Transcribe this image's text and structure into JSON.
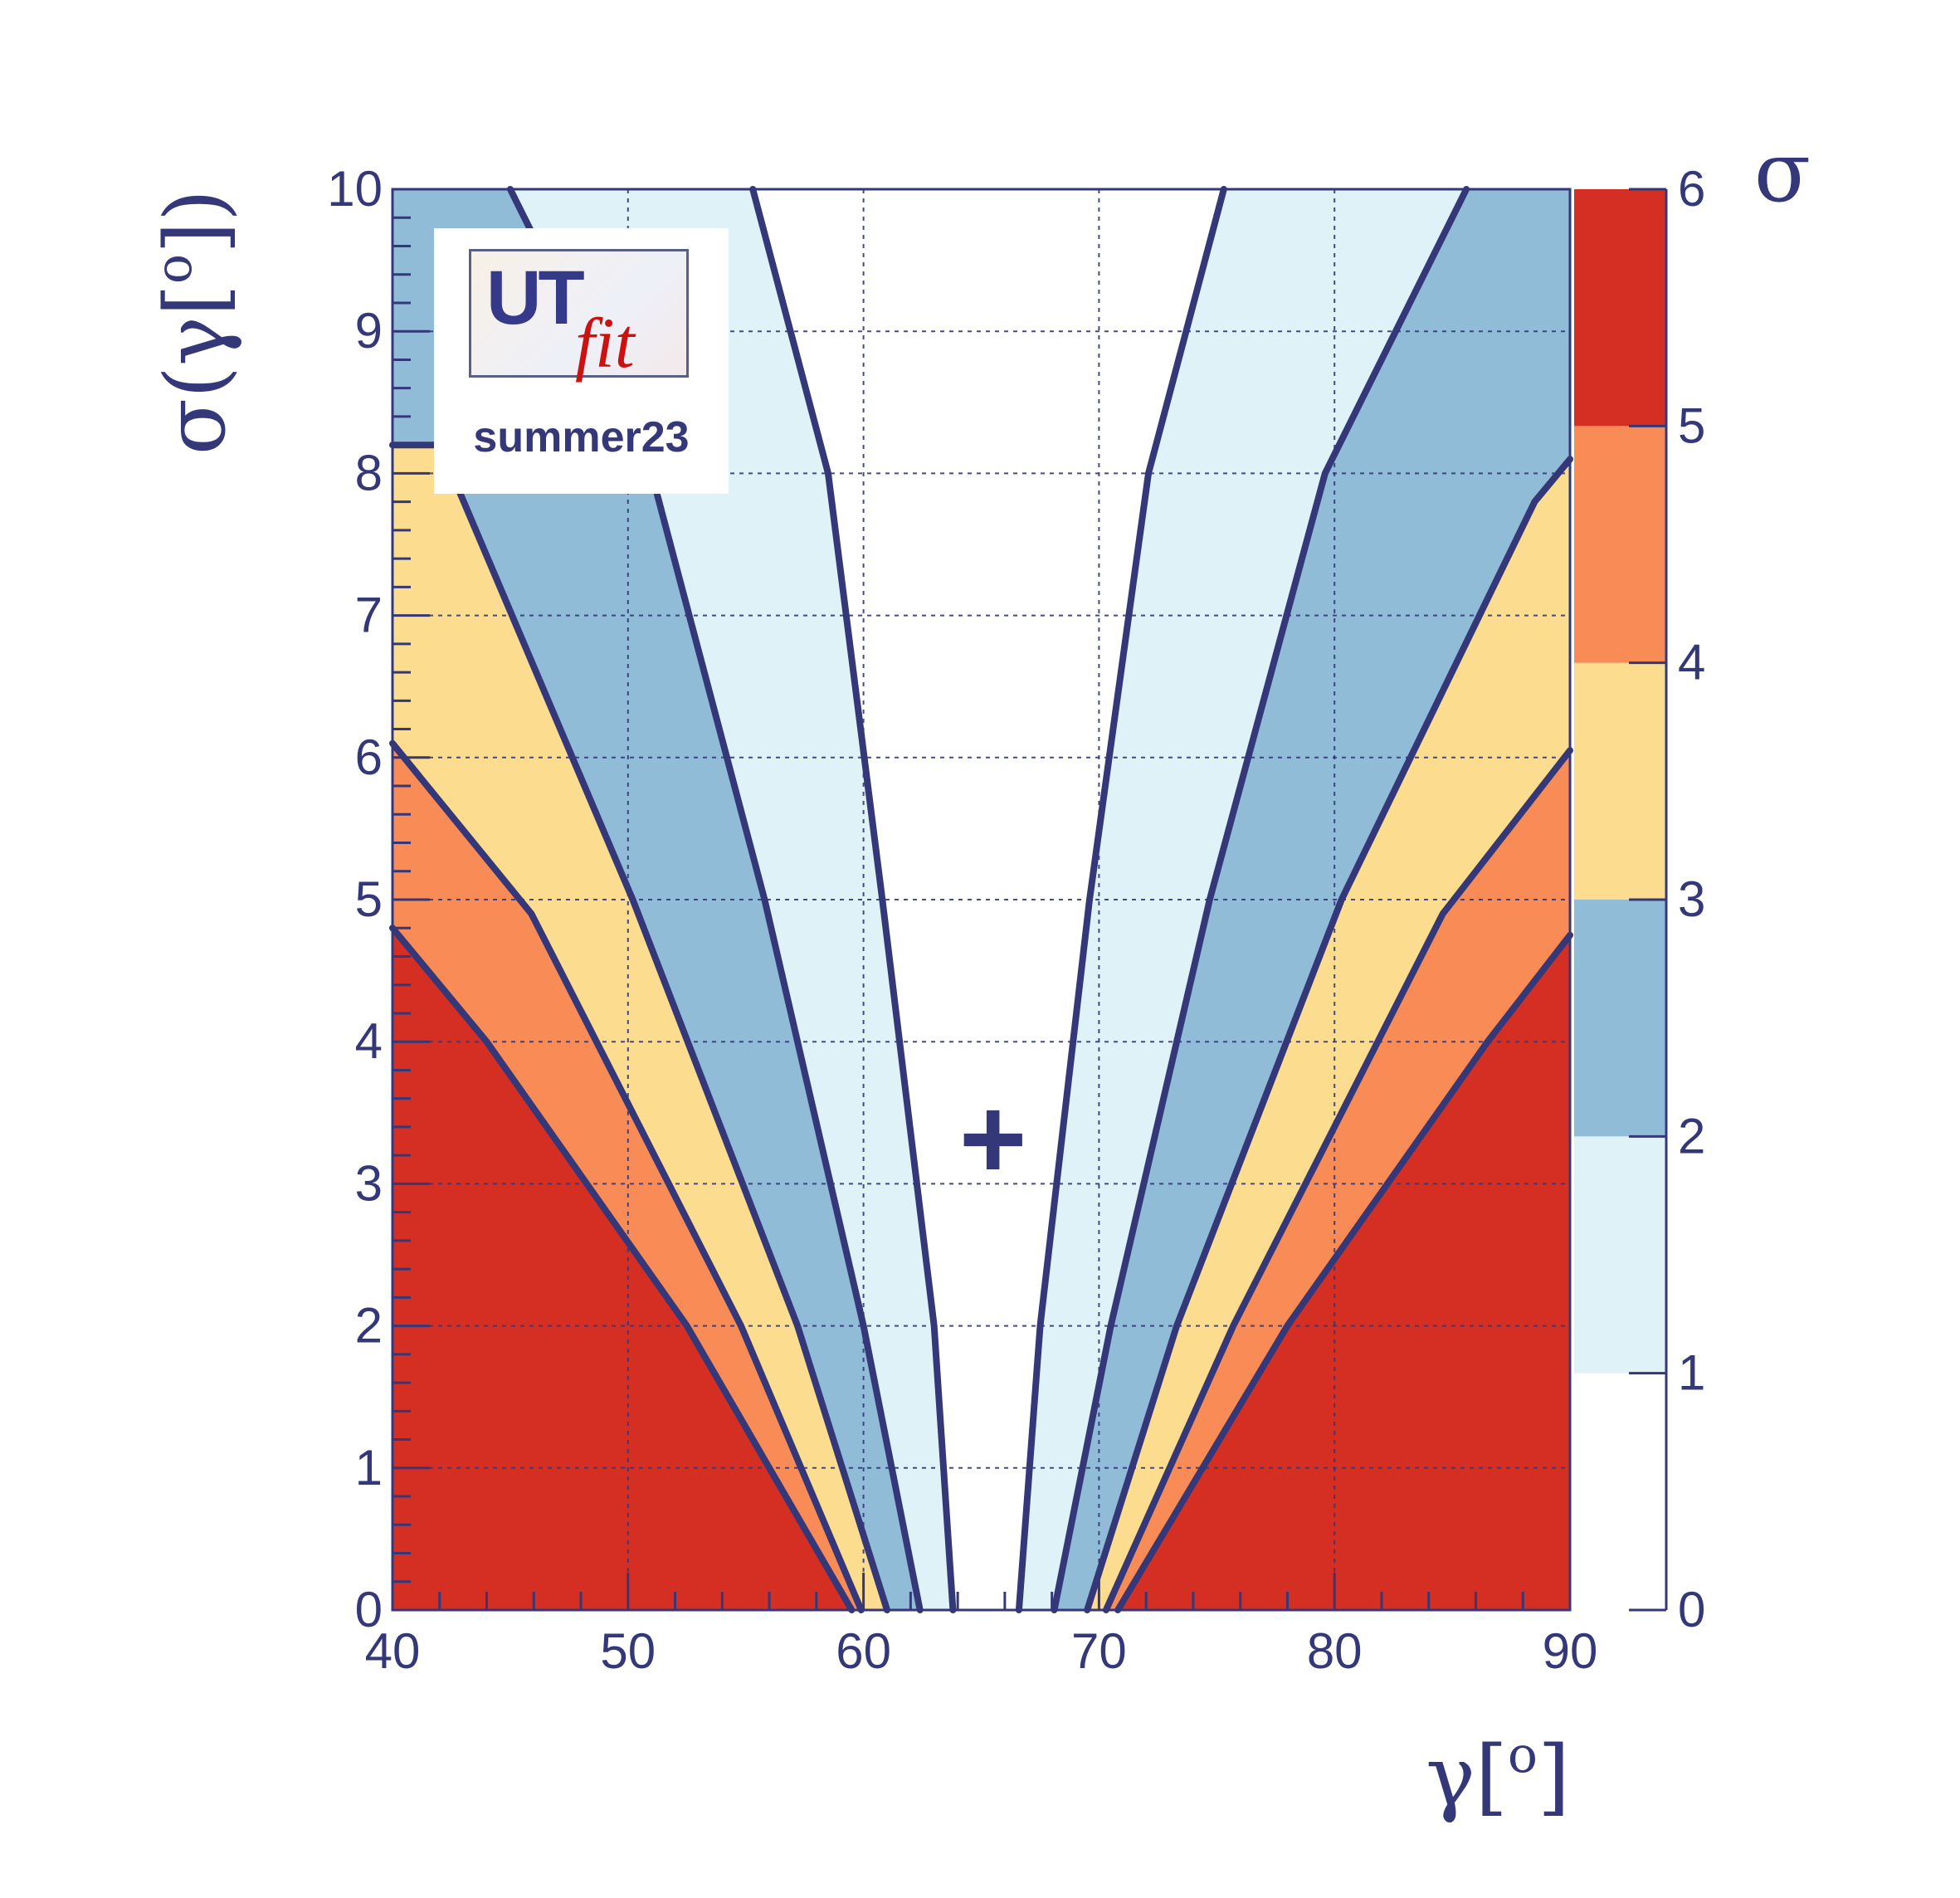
{
  "colors": {
    "axis": "#343879",
    "grid": "#343879",
    "contour_line": "#343879",
    "levels": [
      "#ffffff",
      "#dff2f7",
      "#90bcd8",
      "#fcdc8e",
      "#f98b56",
      "#d52f24"
    ]
  },
  "logo": {
    "main": "UT",
    "fit": "fit",
    "subtitle": "summer23"
  },
  "colorbar": {
    "title": "σ",
    "ticks": [
      "0",
      "1",
      "2",
      "3",
      "4",
      "5",
      "6"
    ]
  },
  "chart_data": {
    "type": "heatmap",
    "title": "",
    "xlabel": "γ[o]",
    "ylabel": "σ(γ[o])",
    "xlim": [
      40,
      90
    ],
    "ylim": [
      0,
      10
    ],
    "x_ticks": [
      "40",
      "50",
      "60",
      "70",
      "80",
      "90"
    ],
    "y_ticks": [
      "0",
      "1",
      "2",
      "3",
      "4",
      "5",
      "6",
      "7",
      "8",
      "9",
      "10"
    ],
    "grid": true,
    "z_label": "σ",
    "z_levels": [
      0,
      1,
      2,
      3,
      4,
      5,
      6
    ],
    "marker": {
      "symbol": "+",
      "x": 65.5,
      "y": 3.3
    },
    "contours": [
      {
        "level": 1,
        "left": [
          [
            63.8,
            0
          ],
          [
            63.0,
            2
          ],
          [
            60.8,
            5
          ],
          [
            58.5,
            8
          ],
          [
            55.3,
            10
          ]
        ],
        "right": [
          [
            66.6,
            0
          ],
          [
            67.5,
            2
          ],
          [
            69.6,
            5
          ],
          [
            72.1,
            8
          ],
          [
            75.3,
            10
          ]
        ]
      },
      {
        "level": 2,
        "left": [
          [
            62.4,
            0
          ],
          [
            60.0,
            2
          ],
          [
            55.8,
            5
          ],
          [
            51.0,
            8
          ],
          [
            45.0,
            10
          ]
        ],
        "right": [
          [
            68.1,
            0
          ],
          [
            70.5,
            2
          ],
          [
            74.7,
            5
          ],
          [
            79.6,
            8
          ],
          [
            85.6,
            10
          ]
        ]
      },
      {
        "level": 3,
        "left": [
          [
            61.0,
            0
          ],
          [
            57.2,
            2
          ],
          [
            50.2,
            5
          ],
          [
            42.0,
            8.2
          ],
          [
            40.0,
            8.2
          ]
        ],
        "right": [
          [
            69.5,
            0
          ],
          [
            73.3,
            2
          ],
          [
            80.3,
            5
          ],
          [
            88.5,
            7.8
          ],
          [
            90.0,
            8.1
          ]
        ]
      },
      {
        "level": 4,
        "left": [
          [
            59.9,
            0
          ],
          [
            54.8,
            2
          ],
          [
            45.9,
            4.9
          ],
          [
            40.0,
            6.1
          ]
        ],
        "right": [
          [
            70.3,
            0
          ],
          [
            75.7,
            2
          ],
          [
            84.6,
            4.9
          ],
          [
            90.0,
            6.05
          ]
        ]
      },
      {
        "level": 5,
        "left": [
          [
            59.5,
            0
          ],
          [
            52.5,
            2
          ],
          [
            44.0,
            4.0
          ],
          [
            40.0,
            4.8
          ]
        ],
        "right": [
          [
            70.8,
            0
          ],
          [
            78.0,
            2
          ],
          [
            86.5,
            4.0
          ],
          [
            90.0,
            4.75
          ]
        ]
      }
    ]
  }
}
